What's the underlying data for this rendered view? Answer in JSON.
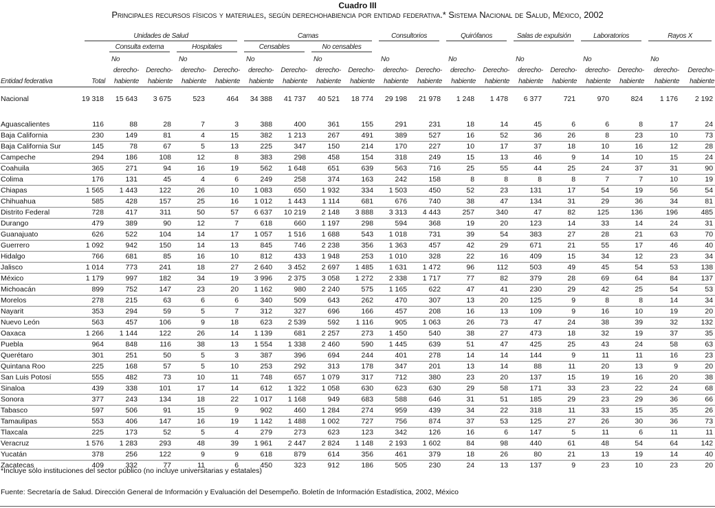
{
  "title": "Cuadro III",
  "subtitle": "Principales recursos físicos y materiales, según derechohabiencia por entidad federativa.* Sistema Nacional de Salud, México, 2002",
  "headers": {
    "entity": "Entidad federativa",
    "total": "Total",
    "groups": [
      "Unidades de Salud",
      "Camas",
      "Consultorios",
      "Quirófanos",
      "Salas de expulsión",
      "Laboratorios",
      "Rayos X"
    ],
    "subgroups": [
      "Consulta externa",
      "Hospitales",
      "Censables",
      "No censables"
    ],
    "no": "No",
    "no_derecho": "derecho-",
    "derecho": "Derecho-",
    "habiente": "habiente"
  },
  "rows": [
    {
      "name": "Nacional",
      "values": [
        "19 318",
        "15 643",
        "3 675",
        "523",
        "464",
        "34 388",
        "41 737",
        "40 521",
        "18 774",
        "29 198",
        "21 978",
        "1 248",
        "1 478",
        "6 377",
        "721",
        "970",
        "824",
        "1 176",
        "2 192"
      ]
    },
    {
      "name": "Aguascalientes",
      "values": [
        "116",
        "88",
        "28",
        "7",
        "3",
        "388",
        "400",
        "361",
        "155",
        "291",
        "231",
        "18",
        "14",
        "45",
        "6",
        "6",
        "8",
        "17",
        "24"
      ]
    },
    {
      "name": "Baja California",
      "values": [
        "230",
        "149",
        "81",
        "4",
        "15",
        "382",
        "1 213",
        "267",
        "491",
        "389",
        "527",
        "16",
        "52",
        "36",
        "26",
        "8",
        "23",
        "10",
        "73"
      ]
    },
    {
      "name": "Baja California Sur",
      "values": [
        "145",
        "78",
        "67",
        "5",
        "13",
        "225",
        "347",
        "150",
        "214",
        "170",
        "227",
        "10",
        "17",
        "37",
        "18",
        "10",
        "16",
        "12",
        "28"
      ]
    },
    {
      "name": "Campeche",
      "values": [
        "294",
        "186",
        "108",
        "12",
        "8",
        "383",
        "298",
        "458",
        "154",
        "318",
        "249",
        "15",
        "13",
        "46",
        "9",
        "14",
        "10",
        "15",
        "24"
      ]
    },
    {
      "name": "Coahuila",
      "values": [
        "365",
        "271",
        "94",
        "16",
        "19",
        "562",
        "1 648",
        "651",
        "639",
        "563",
        "716",
        "25",
        "55",
        "44",
        "25",
        "24",
        "37",
        "31",
        "90"
      ]
    },
    {
      "name": "Colima",
      "values": [
        "176",
        "131",
        "45",
        "4",
        "6",
        "249",
        "258",
        "374",
        "163",
        "242",
        "158",
        "8",
        "8",
        "8",
        "8",
        "7",
        "7",
        "10",
        "19"
      ]
    },
    {
      "name": "Chiapas",
      "values": [
        "1 565",
        "1 443",
        "122",
        "26",
        "10",
        "1 083",
        "650",
        "1 932",
        "334",
        "1 503",
        "450",
        "52",
        "23",
        "131",
        "17",
        "54",
        "19",
        "56",
        "54"
      ]
    },
    {
      "name": "Chihuahua",
      "values": [
        "585",
        "428",
        "157",
        "25",
        "16",
        "1 012",
        "1 443",
        "1 114",
        "681",
        "676",
        "740",
        "38",
        "47",
        "134",
        "31",
        "29",
        "36",
        "34",
        "81"
      ]
    },
    {
      "name": "Distrito Federal",
      "values": [
        "728",
        "417",
        "311",
        "50",
        "57",
        "6 637",
        "10 219",
        "2 148",
        "3 888",
        "3 313",
        "4 443",
        "257",
        "340",
        "47",
        "82",
        "125",
        "136",
        "196",
        "485"
      ]
    },
    {
      "name": "Durango",
      "values": [
        "479",
        "389",
        "90",
        "12",
        "7",
        "618",
        "660",
        "1 197",
        "298",
        "594",
        "368",
        "19",
        "20",
        "123",
        "14",
        "33",
        "14",
        "24",
        "31"
      ]
    },
    {
      "name": "Guanajuato",
      "values": [
        "626",
        "522",
        "104",
        "14",
        "17",
        "1 057",
        "1 516",
        "1 688",
        "543",
        "1 018",
        "731",
        "39",
        "54",
        "383",
        "27",
        "28",
        "21",
        "63",
        "70"
      ]
    },
    {
      "name": "Guerrero",
      "values": [
        "1 092",
        "942",
        "150",
        "14",
        "13",
        "845",
        "746",
        "2 238",
        "356",
        "1 363",
        "457",
        "42",
        "29",
        "671",
        "21",
        "55",
        "17",
        "46",
        "40"
      ]
    },
    {
      "name": "Hidalgo",
      "values": [
        "766",
        "681",
        "85",
        "16",
        "10",
        "812",
        "433",
        "1 948",
        "253",
        "1 010",
        "328",
        "22",
        "16",
        "409",
        "15",
        "34",
        "12",
        "23",
        "34"
      ]
    },
    {
      "name": "Jalisco",
      "values": [
        "1 014",
        "773",
        "241",
        "18",
        "27",
        "2 640",
        "3 452",
        "2 697",
        "1 485",
        "1 631",
        "1 472",
        "96",
        "112",
        "503",
        "49",
        "45",
        "54",
        "53",
        "138"
      ]
    },
    {
      "name": "México",
      "values": [
        "1 179",
        "997",
        "182",
        "34",
        "19",
        "3 996",
        "2 375",
        "3 058",
        "1 272",
        "2 338",
        "1 717",
        "77",
        "82",
        "379",
        "28",
        "69",
        "64",
        "84",
        "137"
      ]
    },
    {
      "name": "Michoacán",
      "values": [
        "899",
        "752",
        "147",
        "23",
        "20",
        "1 162",
        "980",
        "2 240",
        "575",
        "1 165",
        "622",
        "47",
        "41",
        "230",
        "29",
        "42",
        "25",
        "54",
        "53"
      ]
    },
    {
      "name": "Morelos",
      "values": [
        "278",
        "215",
        "63",
        "6",
        "6",
        "340",
        "509",
        "643",
        "262",
        "470",
        "307",
        "13",
        "20",
        "125",
        "9",
        "8",
        "8",
        "14",
        "34"
      ]
    },
    {
      "name": "Nayarit",
      "values": [
        "353",
        "294",
        "59",
        "5",
        "7",
        "312",
        "327",
        "696",
        "166",
        "457",
        "208",
        "16",
        "13",
        "109",
        "9",
        "16",
        "10",
        "19",
        "20"
      ]
    },
    {
      "name": "Nuevo León",
      "values": [
        "563",
        "457",
        "106",
        "9",
        "18",
        "623",
        "2 539",
        "592",
        "1 116",
        "905",
        "1 063",
        "26",
        "73",
        "47",
        "24",
        "38",
        "39",
        "32",
        "132"
      ]
    },
    {
      "name": "Oaxaca",
      "values": [
        "1 266",
        "1 144",
        "122",
        "26",
        "14",
        "1 139",
        "681",
        "2 257",
        "273",
        "1 450",
        "540",
        "38",
        "27",
        "473",
        "18",
        "32",
        "19",
        "37",
        "35"
      ]
    },
    {
      "name": "Puebla",
      "values": [
        "964",
        "848",
        "116",
        "38",
        "13",
        "1 554",
        "1 338",
        "2 460",
        "590",
        "1 445",
        "639",
        "51",
        "47",
        "425",
        "25",
        "43",
        "24",
        "58",
        "63"
      ]
    },
    {
      "name": "Querétaro",
      "values": [
        "301",
        "251",
        "50",
        "5",
        "3",
        "387",
        "396",
        "694",
        "244",
        "401",
        "278",
        "14",
        "14",
        "144",
        "9",
        "11",
        "11",
        "16",
        "23"
      ]
    },
    {
      "name": "Quintana Roo",
      "values": [
        "225",
        "168",
        "57",
        "5",
        "10",
        "253",
        "292",
        "313",
        "178",
        "347",
        "201",
        "13",
        "14",
        "88",
        "11",
        "20",
        "13",
        "9",
        "20"
      ]
    },
    {
      "name": "San Luis Potosí",
      "values": [
        "555",
        "482",
        "73",
        "10",
        "11",
        "748",
        "657",
        "1 079",
        "317",
        "712",
        "380",
        "23",
        "20",
        "137",
        "15",
        "19",
        "16",
        "20",
        "38"
      ]
    },
    {
      "name": "Sinaloa",
      "values": [
        "439",
        "338",
        "101",
        "17",
        "14",
        "612",
        "1 322",
        "1 058",
        "630",
        "623",
        "630",
        "29",
        "58",
        "171",
        "33",
        "23",
        "22",
        "24",
        "68"
      ]
    },
    {
      "name": "Sonora",
      "values": [
        "377",
        "243",
        "134",
        "18",
        "22",
        "1 017",
        "1 168",
        "949",
        "683",
        "588",
        "646",
        "31",
        "51",
        "185",
        "29",
        "23",
        "29",
        "36",
        "66"
      ]
    },
    {
      "name": "Tabasco",
      "values": [
        "597",
        "506",
        "91",
        "15",
        "9",
        "902",
        "460",
        "1 284",
        "274",
        "959",
        "439",
        "34",
        "22",
        "318",
        "11",
        "33",
        "15",
        "35",
        "26"
      ]
    },
    {
      "name": "Tamaulipas",
      "values": [
        "553",
        "406",
        "147",
        "16",
        "19",
        "1 142",
        "1 488",
        "1 002",
        "727",
        "756",
        "874",
        "37",
        "53",
        "125",
        "27",
        "26",
        "30",
        "36",
        "73"
      ]
    },
    {
      "name": "Tlaxcala",
      "values": [
        "225",
        "173",
        "52",
        "5",
        "4",
        "279",
        "273",
        "623",
        "123",
        "342",
        "126",
        "16",
        "6",
        "147",
        "5",
        "11",
        "6",
        "11",
        "11"
      ]
    },
    {
      "name": "Veracruz",
      "values": [
        "1 576",
        "1 283",
        "293",
        "48",
        "39",
        "1 961",
        "2 447",
        "2 824",
        "1 148",
        "2 193",
        "1 602",
        "84",
        "98",
        "440",
        "61",
        "48",
        "54",
        "64",
        "142"
      ]
    },
    {
      "name": "Yucatán",
      "values": [
        "378",
        "256",
        "122",
        "9",
        "9",
        "618",
        "879",
        "614",
        "356",
        "461",
        "379",
        "18",
        "26",
        "80",
        "21",
        "13",
        "19",
        "14",
        "40"
      ]
    },
    {
      "name": "Zacatecas",
      "values": [
        "409",
        "332",
        "77",
        "11",
        "6",
        "450",
        "323",
        "912",
        "186",
        "505",
        "230",
        "24",
        "13",
        "137",
        "9",
        "23",
        "10",
        "23",
        "20"
      ]
    }
  ],
  "footnote": "*Incluye sólo instituciones del sector público (no incluye universitarias y estatales)",
  "source": "Fuente: Secretaría de Salud. Dirección General de Información y Evaluación del Desempeño. Boletín de Información Estadística, 2002, México"
}
